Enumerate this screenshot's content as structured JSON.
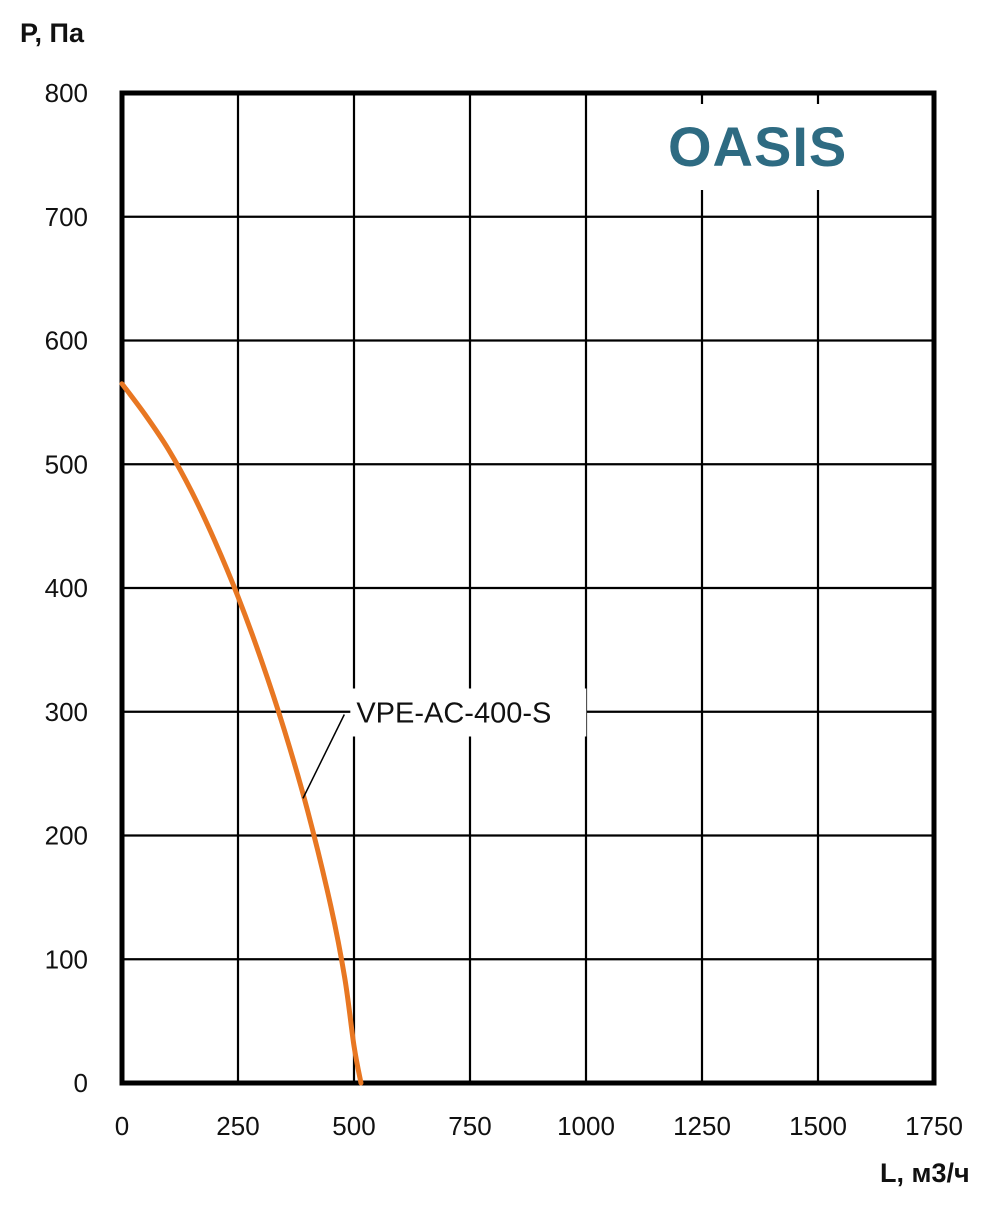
{
  "chart_data": {
    "type": "line",
    "title": "",
    "xlabel": "L, м3/ч",
    "ylabel": "P, Па",
    "xlim": [
      0,
      1750
    ],
    "ylim": [
      0,
      800
    ],
    "x_ticks": [
      "0",
      "250",
      "500",
      "750",
      "1000",
      "1250",
      "1500",
      "1750"
    ],
    "y_ticks": [
      "0",
      "100",
      "200",
      "300",
      "400",
      "500",
      "600",
      "700",
      "800"
    ],
    "grid": true,
    "series": [
      {
        "name": "VPE-AC-400-S",
        "color": "#e87722",
        "x": [
          0,
          50,
          100,
          150,
          200,
          250,
          300,
          350,
          400,
          450,
          480,
          500,
          515
        ],
        "y": [
          565,
          540,
          512,
          478,
          438,
          393,
          342,
          285,
          220,
          143,
          85,
          30,
          0
        ]
      }
    ],
    "logo": {
      "text": "OASIS",
      "color": "#2e6b82"
    },
    "legend": "inline label with leader line"
  }
}
